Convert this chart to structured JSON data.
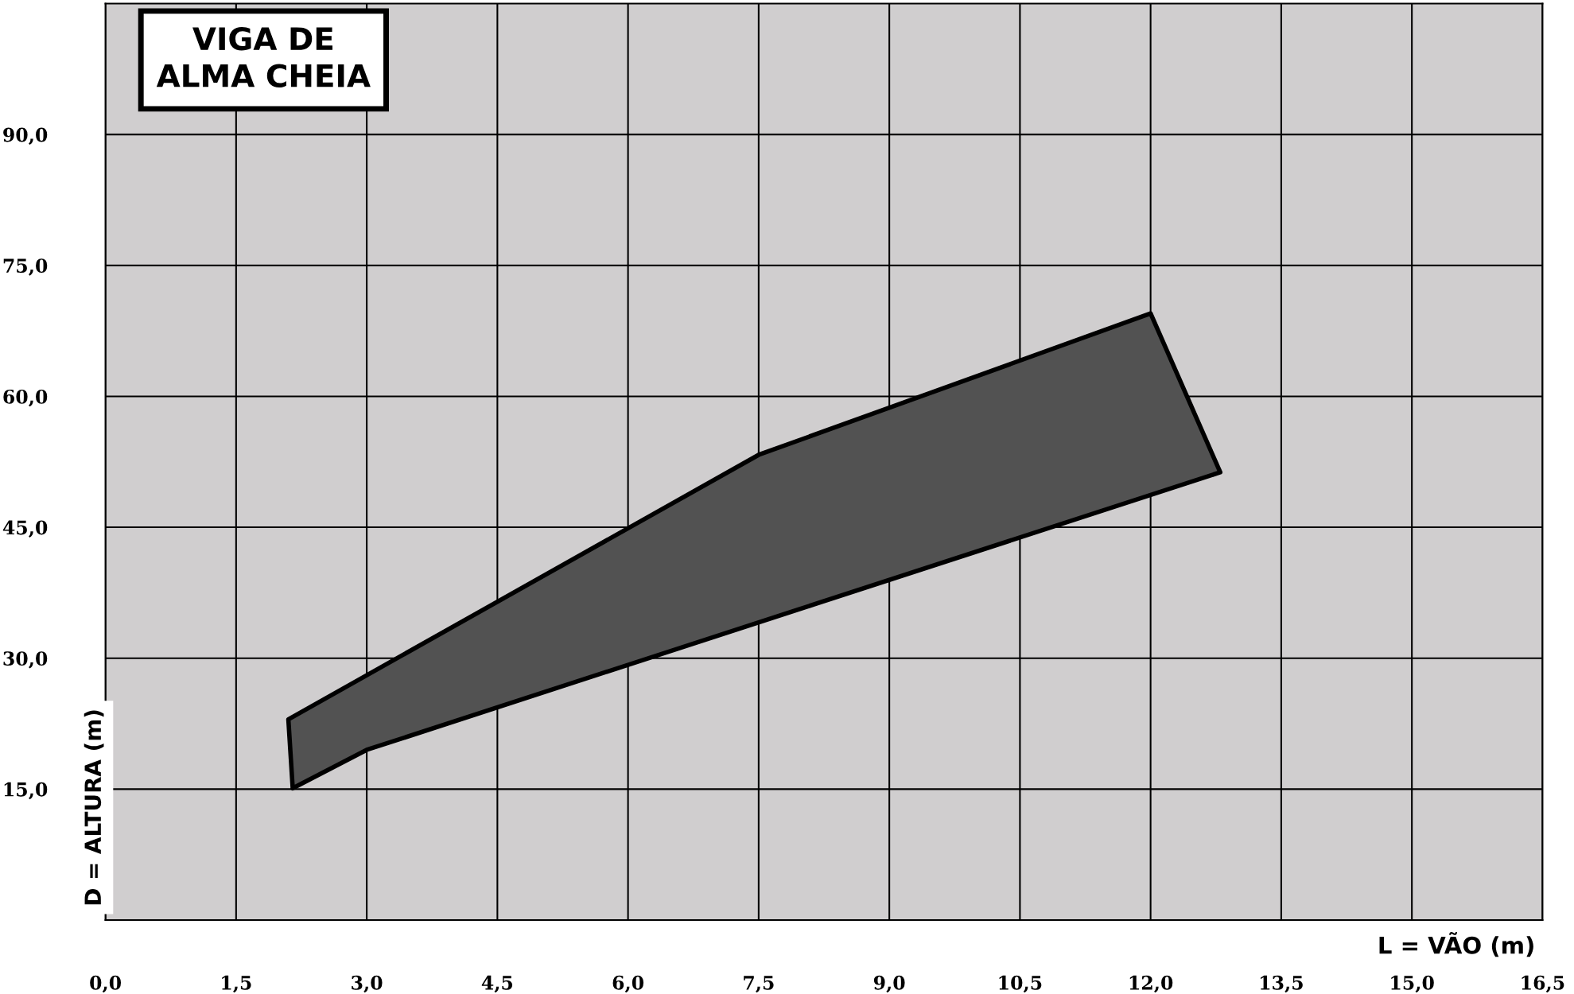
{
  "chart_data": {
    "type": "area",
    "title": "VIGA DE ALMA CHEIA",
    "xlabel": "L = VÃO (m)",
    "ylabel": "D = ALTURA (m)",
    "series": [
      {
        "color": "#525252",
        "x": [
          2.1,
          7.5,
          12.0,
          12.8,
          3.0,
          2.15
        ],
        "values": [
          23.0,
          53.3,
          69.5,
          51.3,
          19.5,
          15.1
        ]
      }
    ],
    "xlim": [
      0,
      16.5
    ],
    "ylim": [
      0,
      105
    ],
    "xticks": [
      {
        "value": 0,
        "label": "0,0"
      },
      {
        "value": 1.5,
        "label": "1,5"
      },
      {
        "value": 3,
        "label": "3,0"
      },
      {
        "value": 4.5,
        "label": "4,5"
      },
      {
        "value": 6,
        "label": "6,0"
      },
      {
        "value": 7.5,
        "label": "7,5"
      },
      {
        "value": 9,
        "label": "9,0"
      },
      {
        "value": 10.5,
        "label": "10,5"
      },
      {
        "value": 12,
        "label": "12,0"
      },
      {
        "value": 13.5,
        "label": "13,5"
      },
      {
        "value": 15,
        "label": "15,0"
      },
      {
        "value": 16.5,
        "label": "16,5"
      }
    ],
    "yticks": [
      {
        "value": 15,
        "label": "15,0"
      },
      {
        "value": 30,
        "label": "30,0"
      },
      {
        "value": 45,
        "label": "45,0"
      },
      {
        "value": 60,
        "label": "60,0"
      },
      {
        "value": 75,
        "label": "75,0"
      },
      {
        "value": 90,
        "label": "90,0"
      }
    ],
    "grid": true
  }
}
